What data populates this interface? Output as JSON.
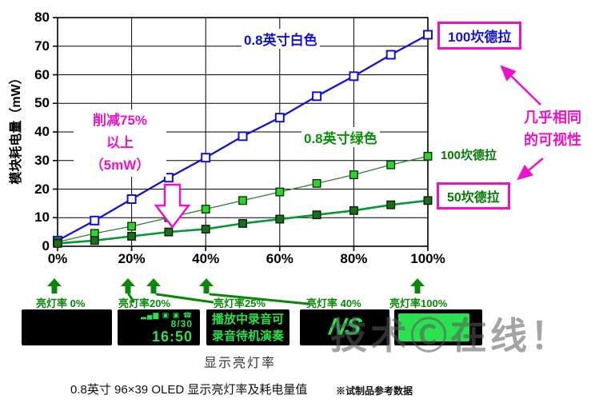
{
  "chart_data": {
    "type": "line",
    "ylabel": "模块耗电量（mW）",
    "ylim": [
      0,
      80
    ],
    "xlim": [
      0,
      100
    ],
    "y_ticks": [
      0,
      10,
      20,
      30,
      40,
      50,
      60,
      70,
      80
    ],
    "x_ticks": [
      0,
      20,
      40,
      60,
      80,
      100
    ],
    "x_tick_labels": [
      "0%",
      "20%",
      "40%",
      "60%",
      "80%",
      "100%"
    ],
    "x": [
      0,
      10,
      20,
      30,
      40,
      50,
      60,
      70,
      80,
      90,
      100
    ],
    "grid": true,
    "legend_position": "inline-annotations",
    "series": [
      {
        "name": "0.8英寸白色 100坎德拉",
        "marker": "open-square",
        "line_color": "#1212d2",
        "marker_fill": "#ffffff",
        "marker_stroke": "#1212d2",
        "line_width": 2.3,
        "values": [
          2,
          9,
          16.5,
          24,
          31,
          38.5,
          45,
          52.5,
          59.5,
          67,
          74
        ]
      },
      {
        "name": "0.8英寸绿色 100坎德拉",
        "marker": "filled-square",
        "line_color": "#2f7d32",
        "marker_fill": "#2ed42e",
        "marker_stroke": "#063306",
        "line_width": 1.3,
        "values": [
          1.5,
          4.5,
          7,
          10,
          13,
          16,
          19,
          22,
          25,
          28.5,
          31.5
        ]
      },
      {
        "name": "0.8英寸绿色 50坎德拉",
        "marker": "filled-square",
        "line_color": "#009933",
        "marker_fill": "#1b6f1b",
        "marker_stroke": "#042204",
        "line_width": 2.6,
        "values": [
          1,
          2,
          3.5,
          5,
          6,
          8,
          9.5,
          11,
          12.5,
          14.5,
          16
        ]
      }
    ]
  },
  "labels": {
    "series_white": "0.8英寸白色",
    "series_green": "0.8英寸绿色",
    "reduction": [
      "削减75%",
      "以上",
      "（5mW）"
    ],
    "box_white_100cd": "100坎德拉",
    "green_100cd": "100坎德拉",
    "box_green_50cd": "50坎德拉",
    "visibility": [
      "几乎相同",
      "的可视性"
    ]
  },
  "pointers": [
    {
      "label": "亮灯率 0%"
    },
    {
      "label": "亮灯率20%"
    },
    {
      "label": "亮灯率25%"
    },
    {
      "label": "亮灯率 40%"
    },
    {
      "label": "亮灯率100%"
    }
  ],
  "screens": {
    "clock": {
      "status_icons": "▂▄▆ ▣ ▣ ☎",
      "date": "8/30",
      "time": "16:50"
    },
    "text": {
      "line1": "播放中录音可",
      "line2": "录音待机演奏"
    },
    "logo": "NS"
  },
  "axis_caption": "显示亮灯率",
  "caption": {
    "main": "0.8英寸 96×39 OLED 显示亮灯率及耗电量值",
    "note": "※试制品参考数据"
  },
  "watermark": "技术Ⓒ在线！",
  "colors": {
    "blue": "#1212d2",
    "magenta": "#ee11cc",
    "green": "#078807",
    "oled_green": "#2ce052"
  }
}
